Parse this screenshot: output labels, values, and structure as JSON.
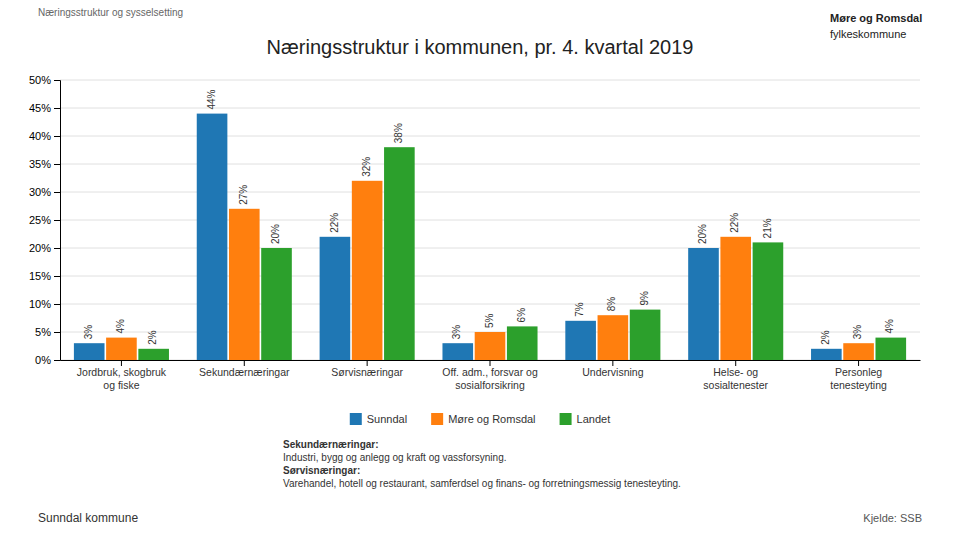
{
  "chart_data": {
    "type": "bar",
    "title": "Næringsstruktur i kommunen, pr. 4. kvartal 2019",
    "annotations": [
      "Næringsstruktur og sysselsetting",
      "Sunndal kommune",
      "Kjelde: SSB",
      "Sekundærnæringar:",
      "Industri, bygg og anlegg og kraft og vassforsyning.",
      "Sørvisnæringar:",
      "Varehandel, hotell og restaurant, samferdsel og finans- og forretningsmessig tenesteyting.",
      "Møre og Romsdal",
      "fylkeskommune"
    ],
    "categories": [
      "Jordbruk, skogbruk\nog fiske",
      "Sekundærnæringar",
      "Sørvisnæringar",
      "Off. adm., forsvar og\nsosialforsikring",
      "Undervisning",
      "Helse- og\nsosialtenester",
      "Personleg\ntenesteyting"
    ],
    "series": [
      {
        "name": "Sunndal",
        "values": [
          3,
          44,
          22,
          3,
          7,
          20,
          2
        ],
        "value_labels": [
          "3%",
          "44%",
          "22%",
          "3%",
          "7%",
          "20%",
          "2%"
        ]
      },
      {
        "name": "Møre og Romsdal",
        "values": [
          4,
          27,
          32,
          5,
          8,
          22,
          3
        ],
        "value_labels": [
          "4%",
          "27%",
          "32%",
          "5%",
          "8%",
          "22%",
          "3%"
        ]
      },
      {
        "name": "Landet",
        "values": [
          2,
          20,
          38,
          6,
          9,
          21,
          4
        ],
        "value_labels": [
          "2%",
          "20%",
          "38%",
          "6%",
          "9%",
          "21%",
          "4%"
        ]
      }
    ],
    "ylim": [
      0,
      50
    ],
    "yticks": [
      {
        "value": 0,
        "label": "0%"
      },
      {
        "value": 5,
        "label": "5%"
      },
      {
        "value": 10,
        "label": "10%"
      },
      {
        "value": 15,
        "label": "15%"
      },
      {
        "value": 20,
        "label": "20%"
      },
      {
        "value": 25,
        "label": "25%"
      },
      {
        "value": 30,
        "label": "30%"
      },
      {
        "value": 35,
        "label": "35%"
      },
      {
        "value": 40,
        "label": "40%"
      },
      {
        "value": 45,
        "label": "45%"
      },
      {
        "value": 50,
        "label": "50%"
      }
    ],
    "grid": true,
    "legend": "bottom",
    "data_labels": true
  }
}
